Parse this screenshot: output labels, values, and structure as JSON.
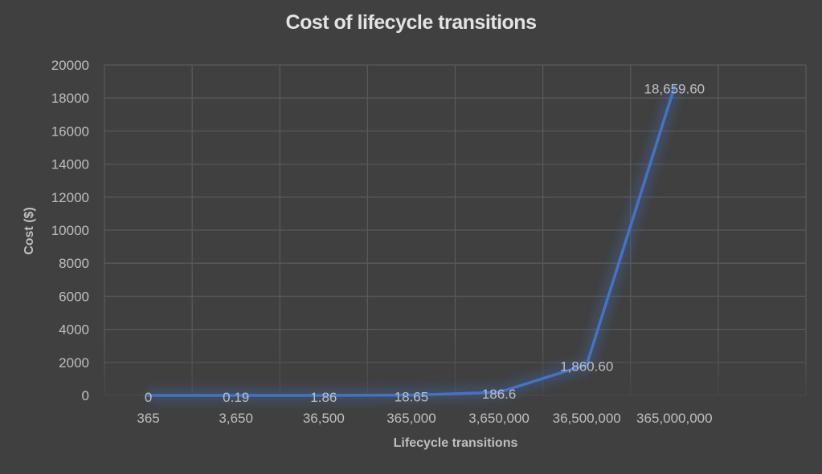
{
  "chart_data": {
    "type": "line",
    "title": "Cost of lifecycle transitions",
    "xlabel": "Lifecycle transitions",
    "ylabel": "Cost ($)",
    "categories": [
      "365",
      "3,650",
      "36,500",
      "365,000",
      "3,650,000",
      "36,500,000",
      "365,000,000"
    ],
    "series": [
      {
        "name": "Cost ($)",
        "values": [
          0,
          0.19,
          1.86,
          18.65,
          186.6,
          1860.6,
          18659.6
        ],
        "data_labels": [
          "0",
          "0.19",
          "1.86",
          "18.65",
          "186.6",
          "1,860.60",
          "18,659.60"
        ],
        "color": "#4472c4"
      }
    ],
    "yticks": [
      0,
      2000,
      4000,
      6000,
      8000,
      10000,
      12000,
      14000,
      16000,
      18000,
      20000
    ],
    "ylim": [
      0,
      20000
    ],
    "grid": true,
    "legend": "none",
    "extra_empty_category_slot": true
  },
  "colors": {
    "background": "#404040",
    "gridline": "#595959",
    "text": "#bfbfbf",
    "title": "#e3e3e3",
    "line": "#4472c4"
  }
}
